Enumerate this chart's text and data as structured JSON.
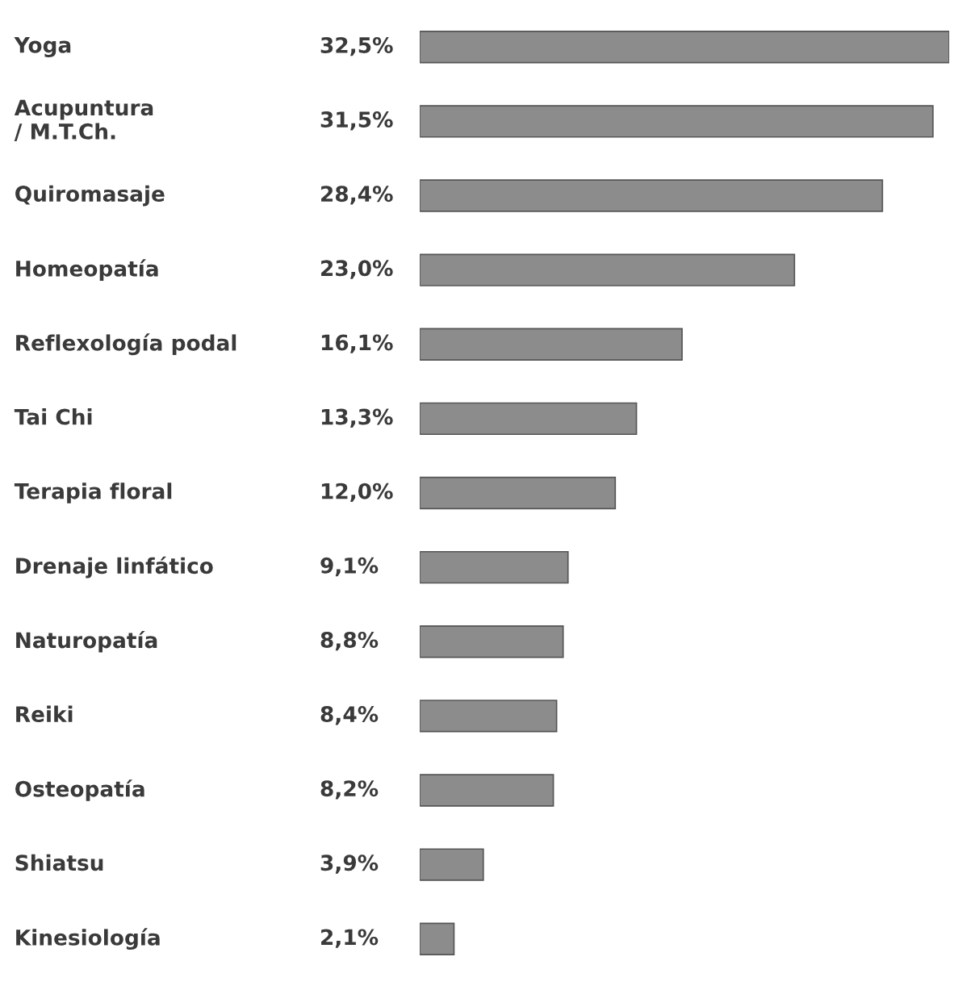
{
  "chart_data": {
    "type": "bar",
    "orientation": "horizontal",
    "categories": [
      "Yoga",
      "Acupuntura\n/ M.T.Ch.",
      "Quiromasaje",
      "Homeopatía",
      "Reflexología podal",
      "Tai Chi",
      "Terapia floral",
      "Drenaje linfático",
      "Naturopatía",
      "Reiki",
      "Osteopatía",
      "Shiatsu",
      "Kinesiología"
    ],
    "values": [
      32.5,
      31.5,
      28.4,
      23.0,
      16.1,
      13.3,
      12.0,
      9.1,
      8.8,
      8.4,
      8.2,
      3.9,
      2.1
    ],
    "value_labels": [
      "32,5%",
      "31,5%",
      "28,4%",
      "23,0%",
      "16,1%",
      "13,3%",
      "12,0%",
      "9,1%",
      "8,8%",
      "8,4%",
      "8,2%",
      "3,9%",
      "2,1%"
    ],
    "color": "#8c8c8c"
  }
}
